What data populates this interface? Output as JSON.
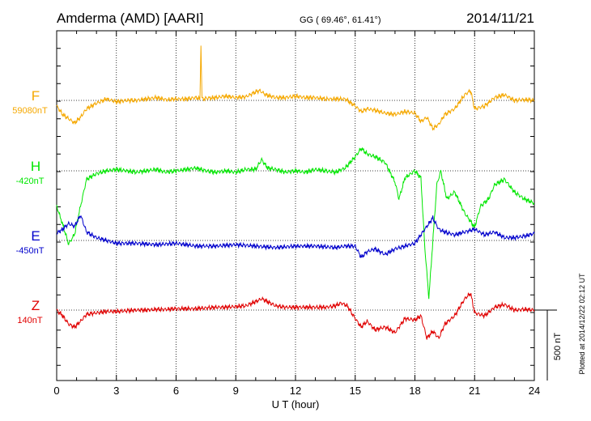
{
  "header": {
    "station": "Amderma (AMD)  [AARI]",
    "coords": "GG ( 69.46°,  61.41°)",
    "date": "2014/11/21"
  },
  "side_note": "Plotted at 2014/12/22 02:12 UT",
  "scale_bar": {
    "label": "500 nT",
    "value_nT": 500
  },
  "chart_data": {
    "type": "line",
    "xlabel": "U T (hour)",
    "xlim": [
      0,
      24
    ],
    "xticks": [
      "0",
      "3",
      "6",
      "9",
      "12",
      "15",
      "18",
      "21",
      "24"
    ],
    "grid": true,
    "series": [
      {
        "name": "F",
        "baseline_label": "59080nT",
        "baseline_nT": 59080,
        "color": "#f5a800",
        "x": [
          0,
          0.3,
          0.6,
          0.9,
          1.2,
          1.5,
          2,
          2.5,
          3,
          3.5,
          4,
          4.5,
          5,
          5.5,
          6,
          6.5,
          7,
          7.2,
          7.25,
          7.3,
          7.35,
          7.5,
          8,
          8.5,
          9,
          9.5,
          10,
          10.2,
          10.5,
          11,
          11.5,
          12,
          12.5,
          13,
          13.5,
          14,
          14.5,
          15,
          15.3,
          15.6,
          16,
          16.5,
          17,
          17.5,
          18,
          18.3,
          18.6,
          18.9,
          19.2,
          19.5,
          20,
          20.5,
          20.8,
          21,
          21.5,
          22,
          22.5,
          23,
          23.5,
          24
        ],
        "y": [
          -40,
          -100,
          -130,
          -160,
          -120,
          -60,
          -20,
          10,
          -10,
          0,
          0,
          10,
          20,
          5,
          10,
          10,
          20,
          10,
          400,
          20,
          10,
          15,
          20,
          30,
          20,
          25,
          60,
          70,
          40,
          20,
          20,
          30,
          20,
          20,
          10,
          10,
          10,
          -40,
          -80,
          -60,
          -70,
          -90,
          -100,
          -80,
          -90,
          -150,
          -120,
          -200,
          -170,
          -100,
          -60,
          40,
          70,
          -60,
          -40,
          20,
          40,
          0,
          5,
          0
        ]
      },
      {
        "name": "H",
        "baseline_label": "-420nT",
        "baseline_nT": -420,
        "color": "#00e600",
        "x": [
          0,
          0.3,
          0.6,
          0.9,
          1.2,
          1.5,
          2,
          2.5,
          3,
          3.5,
          4,
          4.5,
          5,
          5.5,
          6,
          6.5,
          7,
          7.5,
          8,
          8.5,
          9,
          9.5,
          10,
          10.3,
          10.6,
          11,
          11.5,
          12,
          12.5,
          13,
          13.5,
          14,
          14.5,
          15,
          15.3,
          15.6,
          16,
          16.5,
          17,
          17.2,
          17.5,
          18,
          18.3,
          18.5,
          18.7,
          18.9,
          19.1,
          19.3,
          19.6,
          20,
          20.5,
          21,
          21.3,
          21.7,
          22,
          22.5,
          23,
          23.5,
          24
        ],
        "y": [
          -250,
          -380,
          -520,
          -450,
          -250,
          -60,
          -20,
          0,
          10,
          0,
          -10,
          0,
          10,
          -10,
          0,
          10,
          20,
          0,
          -10,
          0,
          -10,
          10,
          10,
          80,
          20,
          10,
          -10,
          0,
          -10,
          10,
          0,
          -10,
          20,
          100,
          160,
          120,
          100,
          60,
          -80,
          -200,
          -50,
          0,
          -50,
          -550,
          -900,
          -500,
          -100,
          0,
          -200,
          -150,
          -300,
          -400,
          -250,
          -200,
          -100,
          -60,
          -150,
          -200,
          -230
        ]
      },
      {
        "name": "E",
        "baseline_label": "-450nT",
        "baseline_nT": -450,
        "color": "#0000cc",
        "x": [
          0,
          0.3,
          0.6,
          0.9,
          1.2,
          1.5,
          2,
          2.5,
          3,
          4,
          5,
          6,
          7,
          8,
          9,
          10,
          11,
          12,
          13,
          14,
          14.5,
          15,
          15.3,
          15.6,
          16,
          16.5,
          17,
          17.5,
          18,
          18.3,
          18.6,
          18.9,
          19.2,
          19.5,
          20,
          20.5,
          21,
          21.5,
          22,
          22.5,
          23,
          23.5,
          24
        ],
        "y": [
          50,
          80,
          120,
          100,
          180,
          60,
          20,
          0,
          -20,
          -20,
          -30,
          -20,
          -40,
          -40,
          -30,
          -40,
          -50,
          -40,
          -40,
          -50,
          -40,
          -40,
          -120,
          -80,
          -60,
          -100,
          -60,
          -40,
          -20,
          40,
          100,
          160,
          80,
          60,
          40,
          60,
          80,
          40,
          60,
          20,
          20,
          30,
          50
        ]
      },
      {
        "name": "Z",
        "baseline_label": "140nT",
        "baseline_nT": 140,
        "color": "#e00000",
        "x": [
          0,
          0.3,
          0.6,
          0.9,
          1.2,
          1.5,
          2,
          2.5,
          3,
          3.5,
          4,
          4.5,
          5,
          5.5,
          6,
          6.5,
          7,
          7.5,
          8,
          8.5,
          9,
          9.5,
          10,
          10.3,
          10.6,
          11,
          11.5,
          12,
          12.5,
          13,
          13.5,
          14,
          14.3,
          14.6,
          15,
          15.3,
          15.6,
          16,
          16.5,
          17,
          17.5,
          18,
          18.3,
          18.6,
          18.9,
          19.2,
          19.5,
          20,
          20.5,
          20.8,
          21,
          21.5,
          22,
          22.5,
          23,
          23.5,
          24
        ],
        "y": [
          0,
          -40,
          -100,
          -120,
          -80,
          -30,
          -20,
          -10,
          -10,
          -5,
          0,
          0,
          5,
          5,
          10,
          10,
          10,
          15,
          20,
          20,
          25,
          30,
          60,
          80,
          60,
          30,
          20,
          20,
          20,
          20,
          20,
          30,
          50,
          30,
          -60,
          -120,
          -80,
          -140,
          -120,
          -160,
          -60,
          -70,
          -40,
          -200,
          -150,
          -200,
          -100,
          -40,
          80,
          120,
          -20,
          -40,
          20,
          40,
          0,
          5,
          0
        ]
      }
    ]
  }
}
